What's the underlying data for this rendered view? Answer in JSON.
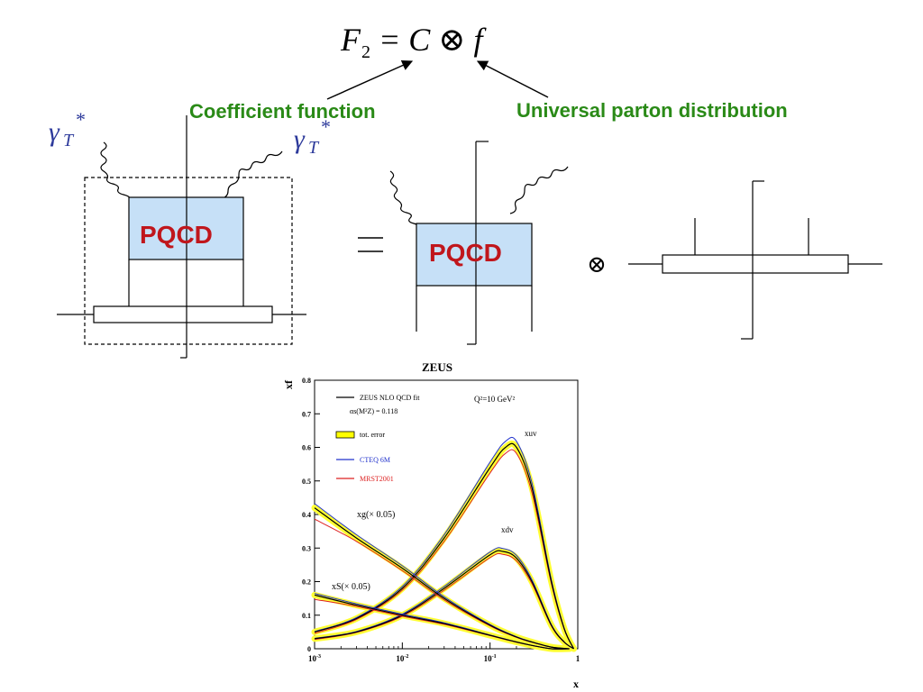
{
  "equation": {
    "F": "F",
    "sub": "2",
    "rest": "= C ⊗ f"
  },
  "labels": {
    "coefficient": "Coefficient function",
    "universal": "Universal parton distribution",
    "pqcd_left": "PQCD",
    "pqcd_right": "PQCD",
    "gamma": "γ",
    "gamma_sub": "T",
    "gamma_sup": "*",
    "otimes": "⊗"
  },
  "colors": {
    "green": "#2a8a17",
    "pqcd_text": "#c0161c",
    "pqcd_fill": "#c6e0f7",
    "gamma": "#2d3a9b"
  },
  "chart_data": {
    "type": "line",
    "title": "ZEUS",
    "xlabel": "x",
    "ylabel": "xf",
    "xscale": "log",
    "xlim": [
      0.001,
      1
    ],
    "ylim": [
      0,
      0.8
    ],
    "xticks": [
      "10-3",
      "10-2",
      "10-1",
      "1"
    ],
    "yticks": [
      "0",
      "0.1",
      "0.2",
      "0.3",
      "0.4",
      "0.5",
      "0.6",
      "0.7",
      "0.8"
    ],
    "annotations": {
      "q2": "Q²=10 GeV²",
      "alpha_line": "αs(M²Z) = 0.118",
      "xuv": "xuv",
      "xdv": "xdv",
      "xg": "xg(× 0.05)",
      "xs": "xS(× 0.05)"
    },
    "legend": [
      {
        "name": "ZEUS NLO QCD fit",
        "color": "#000000"
      },
      {
        "name": "tot. error",
        "color": "#ffff00"
      },
      {
        "name": "CTEQ 6M",
        "color": "#2233cc"
      },
      {
        "name": "MRST2001",
        "color": "#dd2222"
      }
    ],
    "series": [
      {
        "name": "xuv",
        "x": [
          0.001,
          0.003,
          0.01,
          0.03,
          0.1,
          0.15,
          0.2,
          0.3,
          0.5,
          0.7,
          0.9
        ],
        "y": [
          0.05,
          0.09,
          0.18,
          0.33,
          0.54,
          0.6,
          0.6,
          0.48,
          0.2,
          0.06,
          0.0
        ]
      },
      {
        "name": "xdv",
        "x": [
          0.001,
          0.003,
          0.01,
          0.03,
          0.1,
          0.14,
          0.2,
          0.3,
          0.5,
          0.7,
          0.9
        ],
        "y": [
          0.03,
          0.05,
          0.1,
          0.18,
          0.28,
          0.29,
          0.27,
          0.2,
          0.07,
          0.02,
          0.0
        ]
      },
      {
        "name": "xg",
        "x": [
          0.001,
          0.003,
          0.01,
          0.03,
          0.1,
          0.2,
          0.3,
          0.5,
          0.8
        ],
        "y": [
          0.42,
          0.33,
          0.24,
          0.15,
          0.07,
          0.035,
          0.02,
          0.005,
          0.0
        ]
      },
      {
        "name": "xS",
        "x": [
          0.001,
          0.003,
          0.01,
          0.03,
          0.1,
          0.2,
          0.3,
          0.5,
          0.8
        ],
        "y": [
          0.16,
          0.13,
          0.1,
          0.075,
          0.04,
          0.02,
          0.01,
          0.0,
          0.0
        ]
      }
    ]
  }
}
